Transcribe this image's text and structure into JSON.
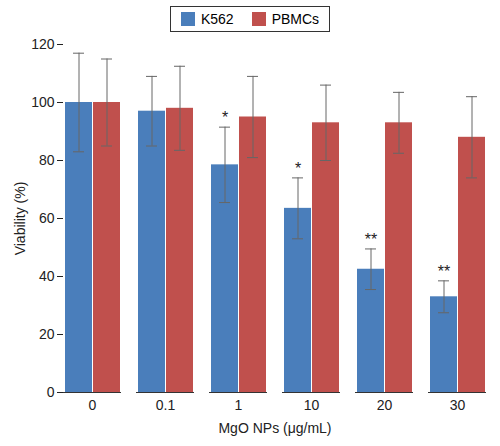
{
  "chart_data": {
    "type": "bar",
    "categories": [
      "0",
      "0.1",
      "1",
      "10",
      "20",
      "30"
    ],
    "series": [
      {
        "name": "K562",
        "color": "#4a7ebb",
        "values": [
          100,
          97,
          78.5,
          63.5,
          42.5,
          33
        ],
        "errors": [
          17,
          12,
          13,
          10.5,
          7,
          5.5
        ],
        "significance": [
          null,
          null,
          "*",
          "*",
          "**",
          "**"
        ]
      },
      {
        "name": "PBMCs",
        "color": "#c0504d",
        "values": [
          100,
          98,
          95,
          93,
          93,
          88
        ],
        "errors": [
          15,
          14.5,
          14,
          13,
          10.5,
          14
        ]
      }
    ],
    "x_label": "MgO NPs (μg/mL)",
    "y_label": "Viability (%)",
    "ylim": [
      0,
      120
    ],
    "yticks": [
      0,
      20,
      40,
      60,
      80,
      100,
      120
    ],
    "legend": "top",
    "grid": false
  }
}
